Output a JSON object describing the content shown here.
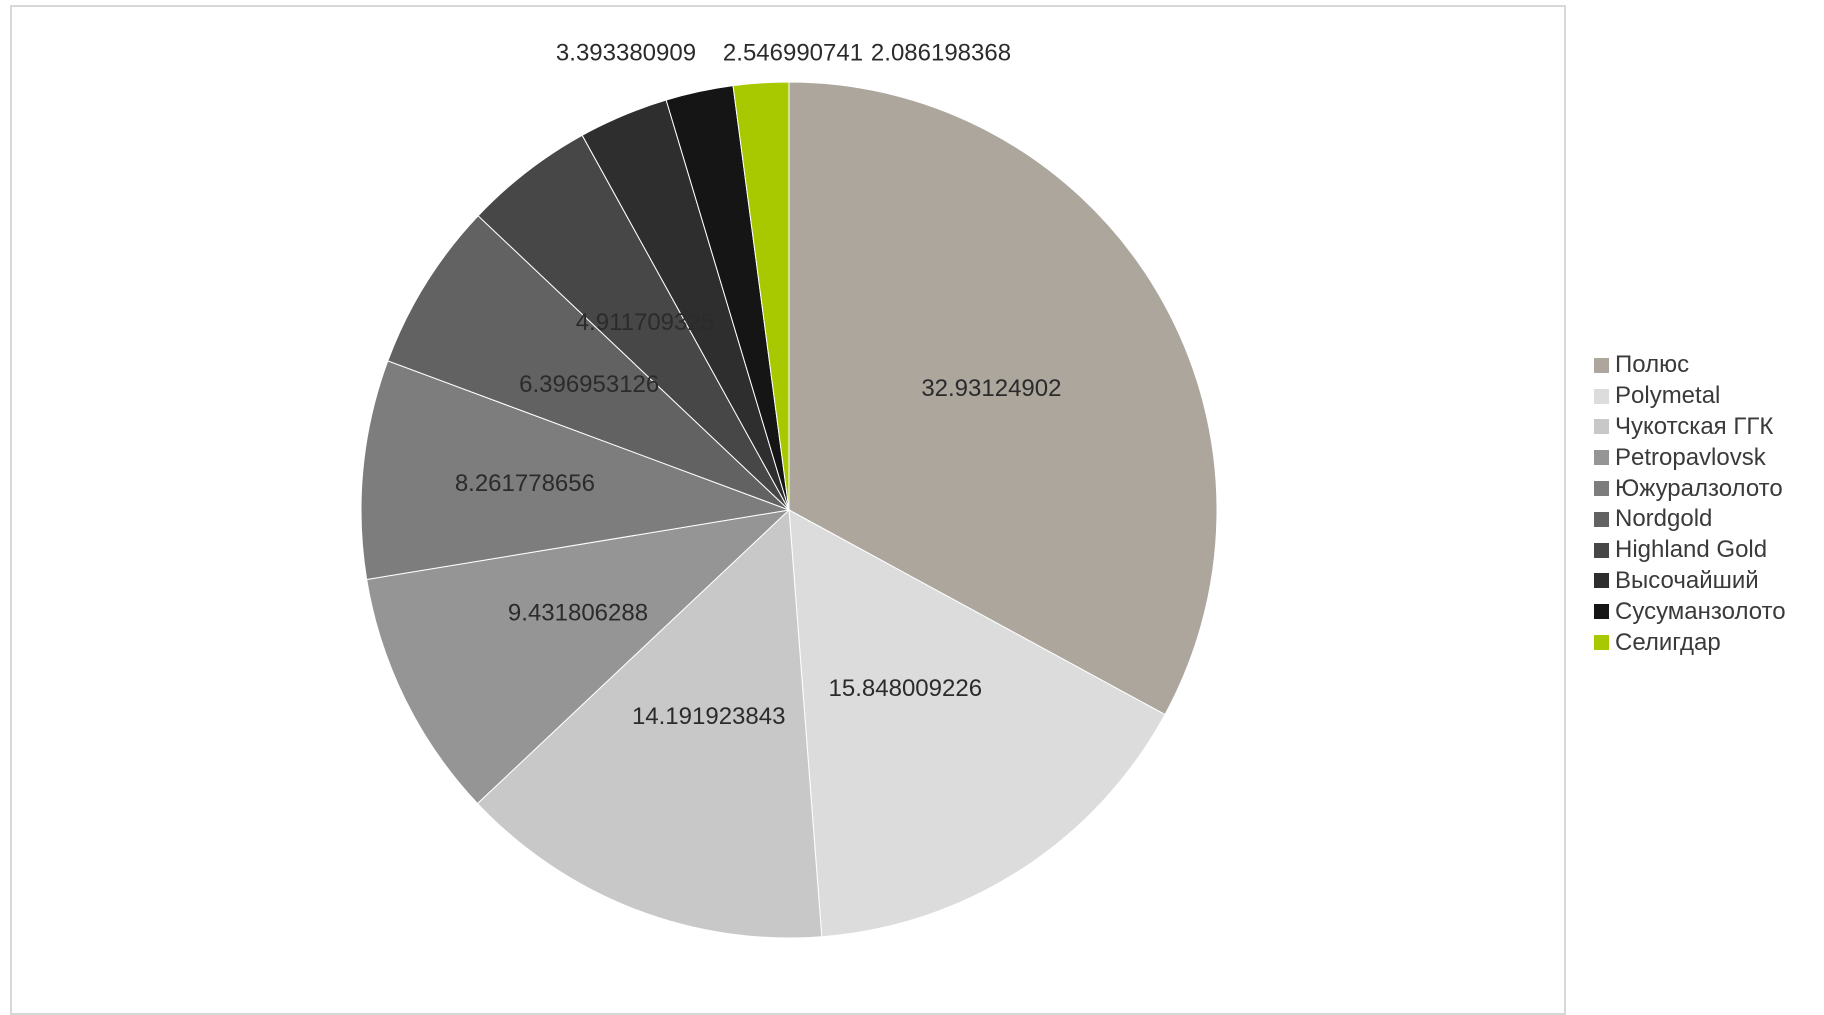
{
  "chart_data": {
    "type": "pie",
    "title": "",
    "categories": [
      "Полюс",
      "Polymetal",
      "Чукотская ГГК",
      "Petropavlovsk",
      "Южуралзолото",
      "Nordgold",
      "Highland Gold",
      "Высочайший",
      "Сусуманзолото",
      "Селигдар"
    ],
    "values": [
      32.93124902,
      15.848009226,
      14.191923843,
      9.431806288,
      8.261778656,
      6.396953126,
      4.911709325,
      3.393380909,
      2.546990741,
      2.086198368
    ],
    "data_labels": [
      "32.93124902",
      "15.848009226",
      "14.191923843",
      "9.431806288",
      "8.261778656",
      "6.396953126",
      "4.911709325",
      "3.393380909",
      "2.546990741",
      "2.086198368"
    ],
    "colors": [
      "#aca69d",
      "#dcdcdc",
      "#c8c8c8",
      "#959595",
      "#7d7d7d",
      "#626262",
      "#474747",
      "#2e2e2e",
      "#151515",
      "#a8c800"
    ],
    "start": "12 o'clock",
    "direction": "clockwise",
    "legend_position": "right"
  }
}
